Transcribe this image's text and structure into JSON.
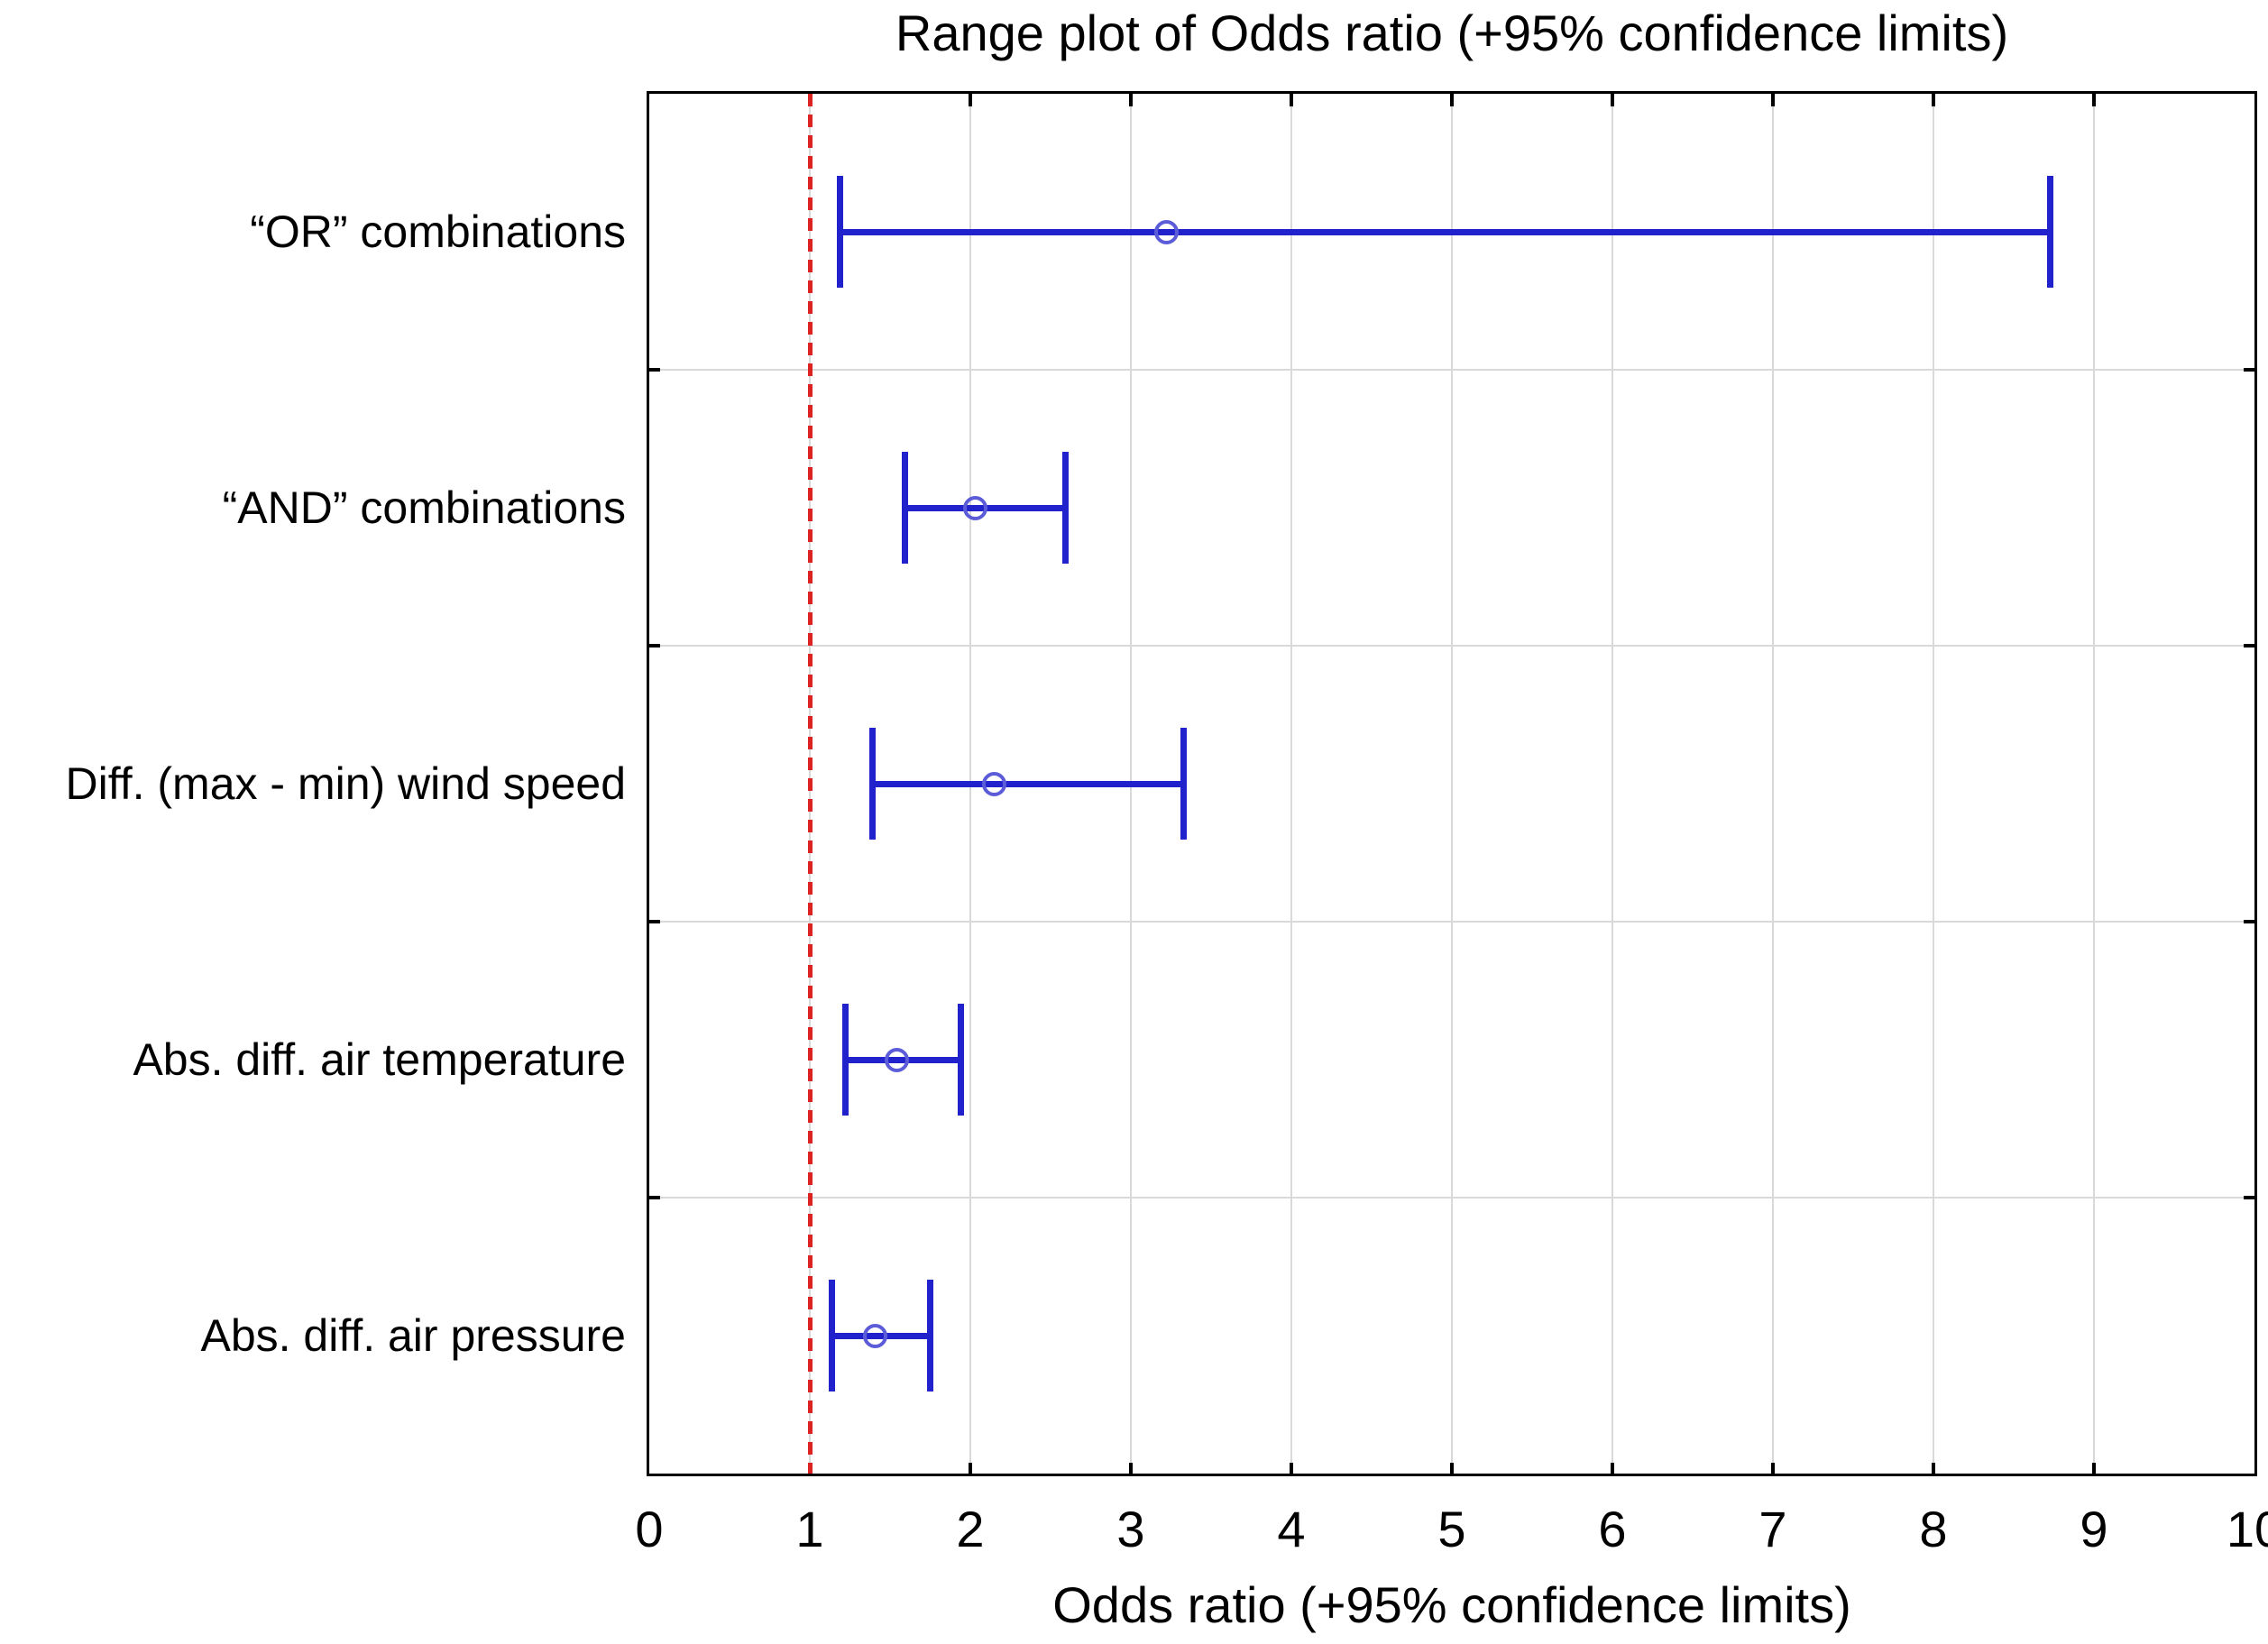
{
  "title": "Range plot of Odds ratio (+95% confidence limits)",
  "xlabel": "Odds ratio (+95% confidence limits)",
  "chart_data": {
    "type": "range",
    "orientation": "horizontal",
    "title": "Range plot of Odds ratio (+95% confidence limits)",
    "xlabel": "Odds ratio (+95% confidence limits)",
    "xlim": [
      0,
      10
    ],
    "x_ticks": [
      0,
      1,
      2,
      3,
      4,
      5,
      6,
      7,
      8,
      9,
      10
    ],
    "grid": true,
    "reference_line_x": 1,
    "rows": [
      {
        "label": "“OR” combinations",
        "odds_ratio": 3.22,
        "ci_low": 1.19,
        "ci_high": 8.73
      },
      {
        "label": "“AND” combinations",
        "odds_ratio": 2.03,
        "ci_low": 1.59,
        "ci_high": 2.59
      },
      {
        "label": "Diff. (max - min) wind speed",
        "odds_ratio": 2.15,
        "ci_low": 1.39,
        "ci_high": 3.33
      },
      {
        "label": "Abs. diff. air temperature",
        "odds_ratio": 1.54,
        "ci_low": 1.22,
        "ci_high": 1.94
      },
      {
        "label": "Abs. diff. air pressure",
        "odds_ratio": 1.41,
        "ci_low": 1.14,
        "ci_high": 1.75
      }
    ],
    "colors": {
      "bar": "#2222cc",
      "marker": "#5c5cd9",
      "reference": "#dd2222",
      "grid": "#d9d9d9",
      "frame": "#000000"
    }
  }
}
